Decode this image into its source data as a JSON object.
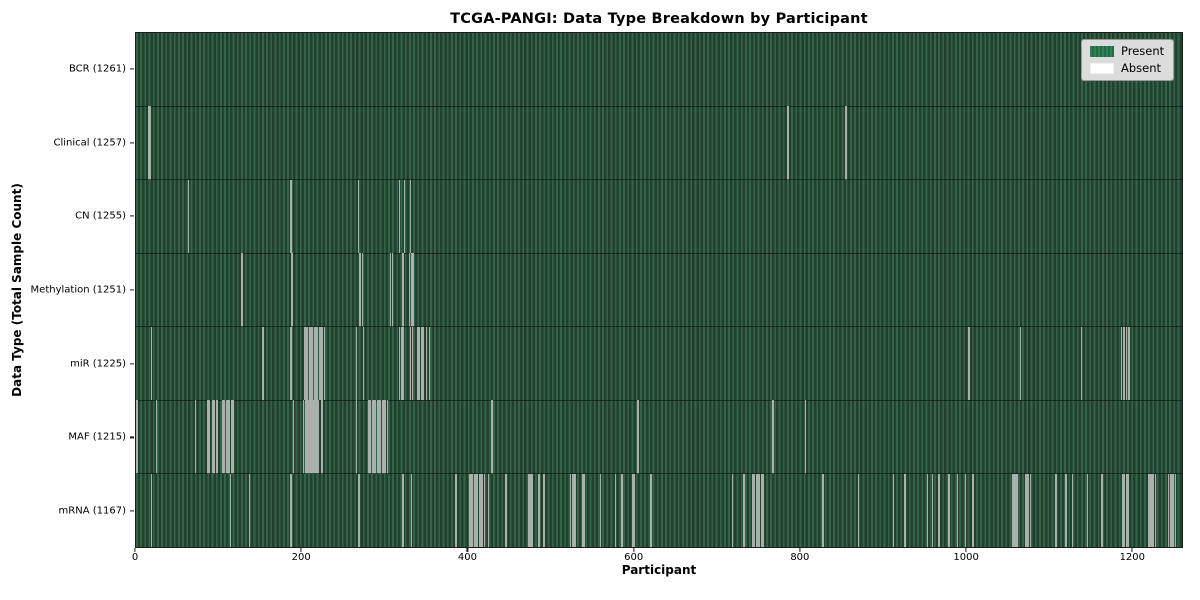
{
  "title": "TCGA-PANGI: Data Type Breakdown by Participant",
  "colors": {
    "present_light": "#35634a",
    "present_dark": "#21402e",
    "absent_line": "#aab0ab",
    "legend_present_swatch": "#2e8257",
    "legend_absent_swatch": "#ffffff",
    "plot_border": "#1c1c1c",
    "legend_background": "#dcdcdc"
  },
  "chart_data": {
    "type": "heatmap",
    "title": "TCGA-PANGI: Data Type Breakdown by Participant",
    "xlabel": "Participant",
    "ylabel": "Data Type (Total Sample Count)",
    "x_range": [
      0,
      1261
    ],
    "x_ticks": [
      0,
      200,
      400,
      600,
      800,
      1000,
      1200
    ],
    "n_participants": 1261,
    "grid": false,
    "legend_position": "upper right",
    "legend": [
      {
        "label": "Present",
        "state": "present"
      },
      {
        "label": "Absent",
        "state": "absent"
      }
    ],
    "cell_encoding": {
      "present": "green",
      "absent": "white"
    },
    "rows": [
      {
        "label": "BCR (1261)",
        "data_type": "BCR",
        "total_samples": 1261,
        "absent_count": 0,
        "absent_participants": []
      },
      {
        "label": "Clinical (1257)",
        "data_type": "Clinical",
        "total_samples": 1257,
        "absent_count": 4,
        "absent_participants": [
          15,
          17,
          786,
          856
        ]
      },
      {
        "label": "CN (1255)",
        "data_type": "CN",
        "total_samples": 1255,
        "absent_count": 6,
        "absent_participants": [
          63,
          187,
          268,
          318,
          324,
          331
        ]
      },
      {
        "label": "Methylation (1251)",
        "data_type": "Methylation",
        "total_samples": 1251,
        "absent_count": 10,
        "absent_participants": [
          128,
          188,
          270,
          273,
          307,
          309,
          322,
          330,
          332,
          334
        ]
      },
      {
        "label": "miR (1225)",
        "data_type": "miR",
        "total_samples": 1225,
        "absent_count": 36,
        "absent_participants": [
          19,
          153,
          187,
          203,
          205,
          207,
          209,
          211,
          213,
          215,
          217,
          219,
          221,
          223,
          225,
          227,
          266,
          274,
          318,
          320,
          322,
          331,
          333,
          340,
          342,
          344,
          346,
          350,
          354,
          1004,
          1066,
          1140,
          1188,
          1191,
          1194,
          1197
        ]
      },
      {
        "label": "MAF (1215)",
        "data_type": "MAF",
        "total_samples": 1215,
        "absent_count": 46,
        "absent_participants": [
          1,
          25,
          72,
          87,
          88,
          93,
          94,
          97,
          98,
          105,
          106,
          107,
          109,
          111,
          113,
          115,
          117,
          190,
          202,
          204,
          206,
          208,
          210,
          212,
          214,
          216,
          218,
          220,
          224,
          266,
          281,
          283,
          285,
          287,
          289,
          291,
          293,
          295,
          297,
          299,
          301,
          303,
          429,
          605,
          768,
          807
        ]
      },
      {
        "label": "mRNA (1167)",
        "data_type": "mRNA",
        "total_samples": 1167,
        "absent_count": 94,
        "absent_participants": [
          19,
          114,
          137,
          187,
          269,
          322,
          332,
          386,
          402,
          403,
          405,
          408,
          409,
          410,
          411,
          414,
          416,
          417,
          420,
          425,
          446,
          474,
          475,
          476,
          478,
          486,
          492,
          524,
          526,
          527,
          528,
          530,
          539,
          541,
          560,
          578,
          586,
          599,
          601,
          621,
          719,
          733,
          744,
          745,
          746,
          748,
          750,
          751,
          752,
          754,
          755,
          756,
          828,
          871,
          913,
          927,
          954,
          960,
          968,
          980,
          990,
          1000,
          1009,
          1057,
          1058,
          1059,
          1061,
          1063,
          1072,
          1073,
          1074,
          1076,
          1078,
          1109,
          1121,
          1129,
          1147,
          1164,
          1165,
          1190,
          1191,
          1192,
          1194,
          1196,
          1221,
          1223,
          1225,
          1227,
          1229,
          1245,
          1247,
          1249,
          1251,
          1253
        ]
      }
    ]
  }
}
